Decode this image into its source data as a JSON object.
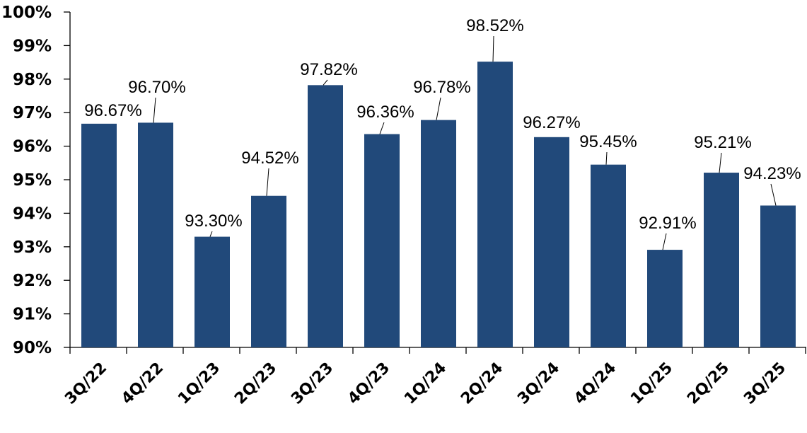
{
  "chart_data": {
    "type": "bar",
    "categories": [
      "3Q/22",
      "4Q/22",
      "1Q/23",
      "2Q/23",
      "3Q/23",
      "4Q/23",
      "1Q/24",
      "2Q/24",
      "3Q/24",
      "4Q/24",
      "1Q/25",
      "2Q/25",
      "3Q/25"
    ],
    "values": [
      96.67,
      96.7,
      93.3,
      94.52,
      97.82,
      96.36,
      96.78,
      98.52,
      96.27,
      95.45,
      92.91,
      95.21,
      94.23
    ],
    "data_labels": [
      "96.67%",
      "96.70%",
      "93.30%",
      "94.52%",
      "97.82%",
      "96.36%",
      "96.78%",
      "98.52%",
      "96.27%",
      "95.45%",
      "92.91%",
      "95.21%",
      "94.23%"
    ],
    "y_tick_labels": [
      "90%",
      "91%",
      "92%",
      "93%",
      "94%",
      "95%",
      "96%",
      "97%",
      "98%",
      "99%",
      "100%"
    ],
    "ylim": [
      90,
      100
    ],
    "y_unit": "%",
    "title": "",
    "xlabel": "",
    "ylabel": "",
    "grid": false,
    "legend": "none",
    "bar_color": "#21497A"
  }
}
